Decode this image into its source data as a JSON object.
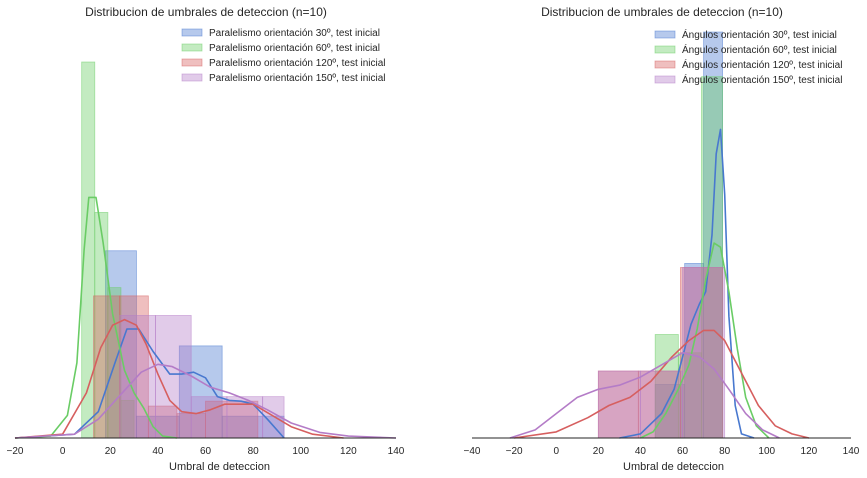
{
  "chart_data": [
    {
      "type": "histogram+kde",
      "title": "Distribucion de umbrales de deteccion (n=10)",
      "xlabel": "Umbral de deteccion",
      "ylabel": "",
      "xlim": [
        -20,
        140
      ],
      "ylim": [
        0,
        1
      ],
      "xticks": [
        -20,
        0,
        20,
        40,
        60,
        80,
        100,
        120,
        140
      ],
      "xtick_labels": [
        "−20",
        "0",
        "20",
        "40",
        "60",
        "80",
        "100",
        "120",
        "140"
      ],
      "legend_position": "top-right",
      "series": [
        {
          "name": "Paralelismo orientación 30º, test inicial",
          "color": "#4878cf",
          "bins": [
            {
              "x0": 18,
              "x1": 31,
              "h": 0.498
            },
            {
              "x0": 31,
              "x1": 49,
              "h": 0.058
            },
            {
              "x0": 49,
              "x1": 67,
              "h": 0.245
            },
            {
              "x0": 67,
              "x1": 93,
              "h": 0.058
            }
          ],
          "kde": [
            [
              -20,
              0
            ],
            [
              5,
              0.01
            ],
            [
              15,
              0.07
            ],
            [
              22,
              0.2
            ],
            [
              27,
              0.29
            ],
            [
              32,
              0.29
            ],
            [
              38,
              0.23
            ],
            [
              45,
              0.17
            ],
            [
              50,
              0.17
            ],
            [
              55,
              0.175
            ],
            [
              60,
              0.16
            ],
            [
              65,
              0.11
            ],
            [
              70,
              0.1
            ],
            [
              75,
              0.098
            ],
            [
              80,
              0.09
            ],
            [
              86,
              0.05
            ],
            [
              93,
              0.0
            ]
          ]
        },
        {
          "name": "Paralelismo orientación 60º, test inicial",
          "color": "#6acc65",
          "bins": [
            {
              "x0": 8,
              "x1": 13.5,
              "h": 1.0
            },
            {
              "x0": 13.5,
              "x1": 19,
              "h": 0.6
            },
            {
              "x0": 19,
              "x1": 24.5,
              "h": 0.4
            },
            {
              "x0": 24.5,
              "x1": 30,
              "h": 0.1
            }
          ],
          "kde": [
            [
              -20,
              0
            ],
            [
              -5,
              0.005
            ],
            [
              2,
              0.06
            ],
            [
              6,
              0.2
            ],
            [
              9,
              0.5
            ],
            [
              11,
              0.64
            ],
            [
              14,
              0.64
            ],
            [
              17,
              0.52
            ],
            [
              21,
              0.33
            ],
            [
              26,
              0.18
            ],
            [
              30,
              0.12
            ],
            [
              34,
              0.08
            ],
            [
              38,
              0.03
            ],
            [
              42,
              0.005
            ],
            [
              48,
              0
            ]
          ]
        },
        {
          "name": "Paralelismo orientación 120º, test inicial",
          "color": "#d65f5f",
          "bins": [
            {
              "x0": 13,
              "x1": 24,
              "h": 0.378
            },
            {
              "x0": 24,
              "x1": 36,
              "h": 0.378
            },
            {
              "x0": 36,
              "x1": 48,
              "h": 0.085
            },
            {
              "x0": 48,
              "x1": 60,
              "h": 0.065
            },
            {
              "x0": 60,
              "x1": 82,
              "h": 0.098
            }
          ],
          "kde": [
            [
              -20,
              0
            ],
            [
              0,
              0.01
            ],
            [
              10,
              0.12
            ],
            [
              16,
              0.24
            ],
            [
              21,
              0.3
            ],
            [
              26,
              0.315
            ],
            [
              31,
              0.3
            ],
            [
              35,
              0.25
            ],
            [
              40,
              0.17
            ],
            [
              45,
              0.1
            ],
            [
              50,
              0.07
            ],
            [
              56,
              0.065
            ],
            [
              62,
              0.075
            ],
            [
              68,
              0.09
            ],
            [
              74,
              0.09
            ],
            [
              80,
              0.09
            ],
            [
              88,
              0.06
            ],
            [
              96,
              0.03
            ],
            [
              105,
              0.01
            ],
            [
              118,
              0
            ]
          ]
        },
        {
          "name": "Paralelismo orientación 150º, test inicial",
          "color": "#b47cc7",
          "bins": [
            {
              "x0": 24,
              "x1": 39,
              "h": 0.326
            },
            {
              "x0": 39,
              "x1": 54,
              "h": 0.326
            },
            {
              "x0": 54,
              "x1": 69,
              "h": 0.11
            },
            {
              "x0": 69,
              "x1": 84,
              "h": 0.11
            },
            {
              "x0": 84,
              "x1": 93,
              "h": 0.11
            }
          ],
          "kde": [
            [
              -20,
              0
            ],
            [
              5,
              0.01
            ],
            [
              15,
              0.05
            ],
            [
              25,
              0.12
            ],
            [
              33,
              0.175
            ],
            [
              40,
              0.196
            ],
            [
              46,
              0.19
            ],
            [
              54,
              0.165
            ],
            [
              62,
              0.135
            ],
            [
              70,
              0.12
            ],
            [
              78,
              0.1
            ],
            [
              86,
              0.075
            ],
            [
              96,
              0.04
            ],
            [
              108,
              0.015
            ],
            [
              120,
              0.005
            ],
            [
              140,
              0
            ]
          ]
        }
      ]
    },
    {
      "type": "histogram+kde",
      "title": "Distribucion de umbrales de deteccion (n=10)",
      "xlabel": "Umbral de deteccion",
      "ylabel": "",
      "xlim": [
        -40,
        140
      ],
      "ylim": [
        0,
        1
      ],
      "xticks": [
        -40,
        -20,
        0,
        20,
        40,
        60,
        80,
        100,
        120,
        140
      ],
      "xtick_labels": [
        "−40",
        "−20",
        "0",
        "20",
        "40",
        "60",
        "80",
        "100",
        "120",
        "140"
      ],
      "legend_position": "top-right",
      "series": [
        {
          "name": "Ángulos orientación 30º, test inicial",
          "color": "#4878cf",
          "bins": [
            {
              "x0": 47,
              "x1": 61,
              "h": 0.132
            },
            {
              "x0": 61,
              "x1": 70,
              "h": 0.43
            },
            {
              "x0": 70,
              "x1": 79,
              "h": 1.0
            }
          ],
          "kde": [
            [
              30,
              0
            ],
            [
              40,
              0.01
            ],
            [
              50,
              0.06
            ],
            [
              56,
              0.12
            ],
            [
              60,
              0.2
            ],
            [
              64,
              0.28
            ],
            [
              68,
              0.33
            ],
            [
              71,
              0.36
            ],
            [
              74,
              0.5
            ],
            [
              76,
              0.7
            ],
            [
              78,
              0.76
            ],
            [
              80,
              0.6
            ],
            [
              82,
              0.3
            ],
            [
              85,
              0.08
            ],
            [
              88,
              0.01
            ],
            [
              94,
              0
            ]
          ]
        },
        {
          "name": "Ángulos orientación 60º, test inicial",
          "color": "#6acc65",
          "bins": [
            {
              "x0": 47,
              "x1": 58,
              "h": 0.255
            },
            {
              "x0": 58,
              "x1": 69,
              "h": 0.21
            },
            {
              "x0": 69,
              "x1": 79,
              "h": 0.89
            }
          ],
          "kde": [
            [
              40,
              0
            ],
            [
              46,
              0.015
            ],
            [
              52,
              0.06
            ],
            [
              58,
              0.12
            ],
            [
              63,
              0.18
            ],
            [
              67,
              0.27
            ],
            [
              71,
              0.39
            ],
            [
              75,
              0.48
            ],
            [
              78,
              0.47
            ],
            [
              82,
              0.36
            ],
            [
              86,
              0.22
            ],
            [
              90,
              0.1
            ],
            [
              95,
              0.03
            ],
            [
              101,
              0
            ]
          ]
        },
        {
          "name": "Ángulos orientación 120º, test inicial",
          "color": "#d65f5f",
          "bins": [
            {
              "x0": 20,
              "x1": 39,
              "h": 0.165
            },
            {
              "x0": 39,
              "x1": 59,
              "h": 0.165
            },
            {
              "x0": 59,
              "x1": 79,
              "h": 0.42
            }
          ],
          "kde": [
            [
              -20,
              0
            ],
            [
              0,
              0.015
            ],
            [
              15,
              0.05
            ],
            [
              25,
              0.08
            ],
            [
              35,
              0.1
            ],
            [
              45,
              0.14
            ],
            [
              55,
              0.2
            ],
            [
              63,
              0.24
            ],
            [
              70,
              0.265
            ],
            [
              75,
              0.265
            ],
            [
              80,
              0.24
            ],
            [
              88,
              0.16
            ],
            [
              96,
              0.08
            ],
            [
              104,
              0.03
            ],
            [
              112,
              0.01
            ],
            [
              120,
              0
            ]
          ]
        },
        {
          "name": "Ángulos orientación 150º, test inicial",
          "color": "#b47cc7",
          "bins": [
            {
              "x0": 20,
              "x1": 40,
              "h": 0.165
            },
            {
              "x0": 40,
              "x1": 60,
              "h": 0.165
            },
            {
              "x0": 60,
              "x1": 80,
              "h": 0.42
            }
          ],
          "kde": [
            [
              -22,
              0
            ],
            [
              -10,
              0.02
            ],
            [
              0,
              0.06
            ],
            [
              10,
              0.1
            ],
            [
              20,
              0.12
            ],
            [
              30,
              0.13
            ],
            [
              40,
              0.15
            ],
            [
              50,
              0.18
            ],
            [
              60,
              0.21
            ],
            [
              68,
              0.2
            ],
            [
              75,
              0.17
            ],
            [
              82,
              0.12
            ],
            [
              90,
              0.06
            ],
            [
              98,
              0.02
            ],
            [
              106,
              0
            ]
          ]
        }
      ]
    }
  ]
}
